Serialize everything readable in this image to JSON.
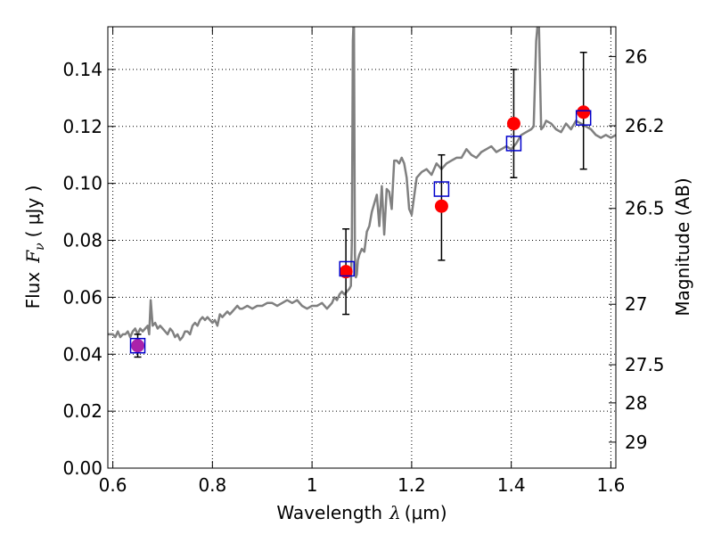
{
  "chart_data": {
    "type": "scatter",
    "xlabel_text": "Wavelength",
    "xlabel_symbol": "λ",
    "xlabel_unit": "(μm)",
    "ylabel_text": "Flux",
    "ylabel_symbol": "F",
    "ylabel_subscript": "ν",
    "ylabel_unit": "( μJy )",
    "y2label": "Magnitude (AB)",
    "xlim": [
      0.59,
      1.61
    ],
    "ylim": [
      0,
      0.155
    ],
    "grid": true,
    "x_ticks": [
      {
        "value": 0.6,
        "label": "0.6"
      },
      {
        "value": 0.8,
        "label": "0.8"
      },
      {
        "value": 1.0,
        "label": "1"
      },
      {
        "value": 1.2,
        "label": "1.2"
      },
      {
        "value": 1.4,
        "label": "1.4"
      },
      {
        "value": 1.6,
        "label": "1.6"
      }
    ],
    "y_ticks": [
      {
        "value": 0.0,
        "label": "0.00"
      },
      {
        "value": 0.02,
        "label": "0.02"
      },
      {
        "value": 0.04,
        "label": "0.04"
      },
      {
        "value": 0.06,
        "label": "0.06"
      },
      {
        "value": 0.08,
        "label": "0.08"
      },
      {
        "value": 0.1,
        "label": "0.10"
      },
      {
        "value": 0.12,
        "label": "0.12"
      },
      {
        "value": 0.14,
        "label": "0.14"
      }
    ],
    "y2_ticks": [
      {
        "value": 26.0,
        "label": "26"
      },
      {
        "value": 26.2,
        "label": "26.2"
      },
      {
        "value": 26.5,
        "label": "26.5"
      },
      {
        "value": 27.0,
        "label": "27"
      },
      {
        "value": 27.5,
        "label": "27.5"
      },
      {
        "value": 28.0,
        "label": "28"
      },
      {
        "value": 29.0,
        "label": "29"
      }
    ],
    "colors": {
      "spectrum": "#808080",
      "model_marker": "#0000cc",
      "observed_marker": "#ff0000",
      "errorbar": "#000000",
      "overlap_marker": "#aa22aa"
    },
    "series": [
      {
        "kind": "line",
        "x": [
          0.59,
          0.6,
          0.605,
          0.61,
          0.615,
          0.62,
          0.625,
          0.63,
          0.635,
          0.64,
          0.645,
          0.65,
          0.655,
          0.66,
          0.665,
          0.67,
          0.673,
          0.676,
          0.68,
          0.685,
          0.69,
          0.695,
          0.7,
          0.705,
          0.71,
          0.715,
          0.72,
          0.725,
          0.73,
          0.735,
          0.74,
          0.745,
          0.75,
          0.755,
          0.76,
          0.765,
          0.77,
          0.775,
          0.78,
          0.785,
          0.79,
          0.795,
          0.8,
          0.805,
          0.81,
          0.815,
          0.82,
          0.825,
          0.83,
          0.835,
          0.84,
          0.845,
          0.85,
          0.855,
          0.86,
          0.87,
          0.88,
          0.89,
          0.9,
          0.91,
          0.92,
          0.93,
          0.94,
          0.95,
          0.96,
          0.97,
          0.98,
          0.99,
          1.0,
          1.01,
          1.02,
          1.03,
          1.04,
          1.045,
          1.05,
          1.055,
          1.06,
          1.065,
          1.07,
          1.075,
          1.078,
          1.08,
          1.082,
          1.084,
          1.086,
          1.088,
          1.09,
          1.092,
          1.095,
          1.1,
          1.105,
          1.11,
          1.115,
          1.12,
          1.125,
          1.13,
          1.135,
          1.14,
          1.145,
          1.15,
          1.155,
          1.16,
          1.165,
          1.17,
          1.175,
          1.18,
          1.185,
          1.19,
          1.195,
          1.2,
          1.21,
          1.22,
          1.23,
          1.24,
          1.25,
          1.26,
          1.27,
          1.28,
          1.29,
          1.3,
          1.31,
          1.32,
          1.33,
          1.34,
          1.35,
          1.36,
          1.37,
          1.38,
          1.39,
          1.4,
          1.41,
          1.42,
          1.43,
          1.44,
          1.445,
          1.45,
          1.455,
          1.46,
          1.465,
          1.47,
          1.48,
          1.49,
          1.5,
          1.51,
          1.52,
          1.53,
          1.54,
          1.55,
          1.56,
          1.57,
          1.58,
          1.59,
          1.6,
          1.61
        ],
        "y": [
          0.047,
          0.047,
          0.046,
          0.048,
          0.046,
          0.047,
          0.047,
          0.048,
          0.046,
          0.048,
          0.049,
          0.047,
          0.049,
          0.048,
          0.049,
          0.05,
          0.047,
          0.059,
          0.05,
          0.051,
          0.049,
          0.05,
          0.049,
          0.048,
          0.047,
          0.049,
          0.048,
          0.046,
          0.047,
          0.045,
          0.046,
          0.048,
          0.048,
          0.047,
          0.05,
          0.051,
          0.05,
          0.052,
          0.053,
          0.052,
          0.053,
          0.052,
          0.051,
          0.052,
          0.05,
          0.054,
          0.053,
          0.054,
          0.055,
          0.054,
          0.055,
          0.056,
          0.057,
          0.056,
          0.056,
          0.057,
          0.056,
          0.057,
          0.057,
          0.058,
          0.058,
          0.057,
          0.058,
          0.059,
          0.058,
          0.059,
          0.057,
          0.056,
          0.057,
          0.057,
          0.058,
          0.056,
          0.058,
          0.06,
          0.059,
          0.061,
          0.062,
          0.061,
          0.062,
          0.063,
          0.064,
          0.08,
          0.15,
          0.16,
          0.075,
          0.067,
          0.068,
          0.073,
          0.075,
          0.077,
          0.076,
          0.083,
          0.085,
          0.09,
          0.093,
          0.096,
          0.085,
          0.099,
          0.082,
          0.098,
          0.097,
          0.091,
          0.108,
          0.108,
          0.107,
          0.109,
          0.107,
          0.102,
          0.091,
          0.089,
          0.102,
          0.104,
          0.105,
          0.103,
          0.107,
          0.105,
          0.107,
          0.108,
          0.109,
          0.109,
          0.112,
          0.11,
          0.109,
          0.111,
          0.112,
          0.113,
          0.111,
          0.112,
          0.113,
          0.112,
          0.114,
          0.117,
          0.118,
          0.119,
          0.12,
          0.15,
          0.16,
          0.119,
          0.12,
          0.122,
          0.121,
          0.119,
          0.118,
          0.121,
          0.119,
          0.122,
          0.121,
          0.12,
          0.119,
          0.117,
          0.116,
          0.117,
          0.116,
          0.117
        ]
      },
      {
        "kind": "model",
        "name": "",
        "x": [
          0.65,
          1.07,
          1.26,
          1.405,
          1.545
        ],
        "y": [
          0.043,
          0.07,
          0.098,
          0.114,
          0.123
        ]
      },
      {
        "kind": "observed",
        "name": "",
        "x": [
          0.65,
          1.068,
          1.26,
          1.405,
          1.545
        ],
        "y": [
          0.043,
          0.069,
          0.092,
          0.121,
          0.125
        ],
        "yerr_low": [
          0.004,
          0.015,
          0.019,
          0.019,
          0.02
        ],
        "yerr_high": [
          0.004,
          0.015,
          0.018,
          0.019,
          0.021
        ]
      }
    ]
  }
}
